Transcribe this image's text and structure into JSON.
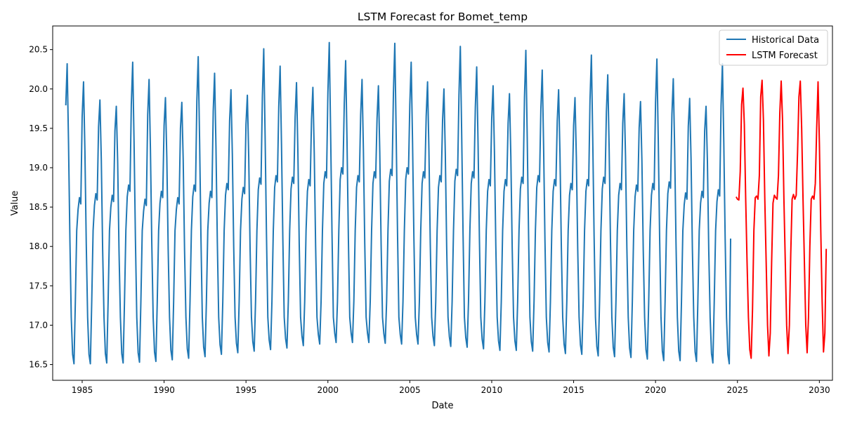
{
  "chart_data": {
    "type": "line",
    "title": "LSTM Forecast for Bomet_temp",
    "xlabel": "Date",
    "ylabel": "Value",
    "xlim": [
      1983.2,
      2030.8
    ],
    "ylim": [
      16.3,
      20.8
    ],
    "x_ticks": [
      1985,
      1990,
      1995,
      2000,
      2005,
      2010,
      2015,
      2020,
      2025,
      2030
    ],
    "y_ticks": [
      16.5,
      17.0,
      17.5,
      18.0,
      18.5,
      19.0,
      19.5,
      20.0,
      20.5
    ],
    "legend_position": "top-right",
    "grid": false,
    "historical_pattern": {
      "start_year": 1984,
      "end_year": 2024,
      "annual_peaks": [
        20.32,
        20.09,
        19.86,
        19.78,
        20.34,
        20.12,
        19.89,
        19.83,
        20.41,
        20.2,
        19.99,
        19.92,
        20.51,
        20.29,
        20.08,
        20.02,
        20.59,
        20.36,
        20.12,
        20.04,
        20.58,
        20.34,
        20.09,
        20.0,
        20.54,
        20.28,
        20.04,
        19.94,
        20.49,
        20.24,
        19.99,
        19.89,
        20.43,
        20.18,
        19.94,
        19.84,
        20.38,
        20.13,
        19.88,
        19.78,
        20.32
      ],
      "annual_troughs": [
        16.51,
        16.51,
        16.52,
        16.52,
        16.53,
        16.54,
        16.56,
        16.58,
        16.6,
        16.63,
        16.65,
        16.67,
        16.69,
        16.71,
        16.74,
        16.76,
        16.78,
        16.78,
        16.78,
        16.77,
        16.76,
        16.76,
        16.74,
        16.73,
        16.72,
        16.7,
        16.68,
        16.68,
        16.67,
        16.66,
        16.64,
        16.63,
        16.61,
        16.6,
        16.59,
        16.57,
        16.55,
        16.55,
        16.54,
        16.52,
        16.51
      ],
      "annual_shoulders": [
        18.62,
        18.67,
        18.65,
        18.78,
        18.6,
        18.7,
        18.62,
        18.78,
        18.7,
        18.8,
        18.75,
        18.87,
        18.9,
        18.88,
        18.85,
        18.95,
        19.0,
        18.9,
        18.95,
        18.98,
        19.0,
        18.95,
        18.9,
        18.98,
        18.95,
        18.85,
        18.85,
        18.88,
        18.9,
        18.85,
        18.8,
        18.85,
        18.88,
        18.8,
        18.78,
        18.8,
        18.82,
        18.68,
        18.7,
        18.72,
        18.75
      ],
      "last_point": [
        2024.58,
        18.1
      ]
    },
    "series": [
      {
        "name": "Historical Data",
        "color": "#1f77b4",
        "x_start": 1984.0,
        "x_step": 0.0833333,
        "values": []
      },
      {
        "name": "LSTM Forecast",
        "color": "#ff0000",
        "x_start": 2024.92,
        "x_step": 0.0833333,
        "values": [
          18.63,
          18.6,
          18.59,
          18.95,
          19.8,
          20.01,
          19.55,
          18.6,
          17.8,
          17.1,
          16.69,
          16.58,
          17.2,
          18.2,
          18.62,
          18.64,
          18.6,
          18.9,
          19.9,
          20.11,
          19.6,
          18.6,
          17.8,
          17.0,
          16.61,
          16.9,
          17.8,
          18.55,
          18.65,
          18.62,
          18.6,
          18.9,
          19.7,
          20.1,
          19.6,
          18.6,
          17.8,
          17.0,
          16.64,
          17.0,
          17.9,
          18.6,
          18.66,
          18.6,
          18.65,
          19.2,
          19.9,
          20.1,
          19.5,
          18.6,
          17.8,
          17.0,
          16.65,
          17.1,
          18.0,
          18.6,
          18.64,
          18.6,
          18.8,
          19.5,
          20.09,
          19.3,
          18.2,
          17.3,
          16.66,
          16.9,
          17.97
        ]
      }
    ]
  }
}
